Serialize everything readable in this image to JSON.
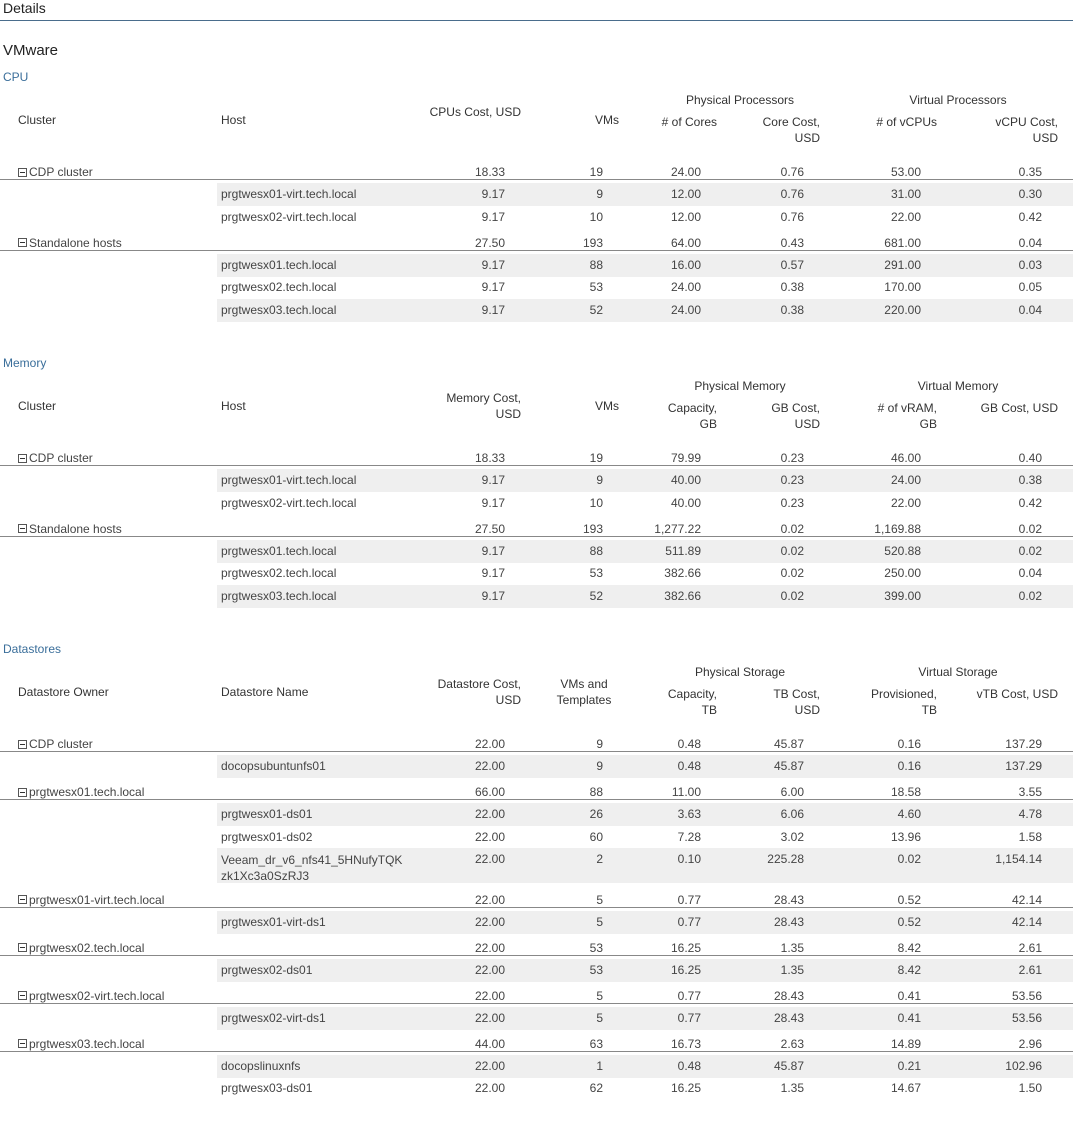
{
  "page": {
    "title": "Details",
    "subtitle": "VMware"
  },
  "cpu": {
    "title": "CPU",
    "headers": {
      "cluster": "Cluster",
      "host": "Host",
      "cost": "CPUs Cost, USD",
      "vms": "VMs",
      "group1": "Physical Processors",
      "g1c1": "# of Cores",
      "g1c2": "Core Cost, USD",
      "group2": "Virtual Processors",
      "g2c1": "# of vCPUs",
      "g2c2": "vCPU Cost, USD"
    },
    "groups": [
      {
        "name": "CDP cluster",
        "values": [
          "18.33",
          "19",
          "24.00",
          "0.76",
          "53.00",
          "0.35"
        ],
        "rows": [
          {
            "host": "prgtwesx01-virt.tech.local",
            "values": [
              "9.17",
              "9",
              "12.00",
              "0.76",
              "31.00",
              "0.30"
            ]
          },
          {
            "host": "prgtwesx02-virt.tech.local",
            "values": [
              "9.17",
              "10",
              "12.00",
              "0.76",
              "22.00",
              "0.42"
            ]
          }
        ]
      },
      {
        "name": "Standalone hosts",
        "values": [
          "27.50",
          "193",
          "64.00",
          "0.43",
          "681.00",
          "0.04"
        ],
        "rows": [
          {
            "host": "prgtwesx01.tech.local",
            "values": [
              "9.17",
              "88",
              "16.00",
              "0.57",
              "291.00",
              "0.03"
            ]
          },
          {
            "host": "prgtwesx02.tech.local",
            "values": [
              "9.17",
              "53",
              "24.00",
              "0.38",
              "170.00",
              "0.05"
            ]
          },
          {
            "host": "prgtwesx03.tech.local",
            "values": [
              "9.17",
              "52",
              "24.00",
              "0.38",
              "220.00",
              "0.04"
            ]
          }
        ]
      }
    ]
  },
  "memory": {
    "title": "Memory",
    "headers": {
      "cluster": "Cluster",
      "host": "Host",
      "cost": "Memory Cost, USD",
      "vms": "VMs",
      "group1": "Physical Memory",
      "g1c1": "Capacity, GB",
      "g1c2": "GB Cost, USD",
      "group2": "Virtual Memory",
      "g2c1": "# of vRAM, GB",
      "g2c2": "GB Cost, USD"
    },
    "groups": [
      {
        "name": "CDP cluster",
        "values": [
          "18.33",
          "19",
          "79.99",
          "0.23",
          "46.00",
          "0.40"
        ],
        "rows": [
          {
            "host": "prgtwesx01-virt.tech.local",
            "values": [
              "9.17",
              "9",
              "40.00",
              "0.23",
              "24.00",
              "0.38"
            ]
          },
          {
            "host": "prgtwesx02-virt.tech.local",
            "values": [
              "9.17",
              "10",
              "40.00",
              "0.23",
              "22.00",
              "0.42"
            ]
          }
        ]
      },
      {
        "name": "Standalone hosts",
        "values": [
          "27.50",
          "193",
          "1,277.22",
          "0.02",
          "1,169.88",
          "0.02"
        ],
        "rows": [
          {
            "host": "prgtwesx01.tech.local",
            "values": [
              "9.17",
              "88",
              "511.89",
              "0.02",
              "520.88",
              "0.02"
            ]
          },
          {
            "host": "prgtwesx02.tech.local",
            "values": [
              "9.17",
              "53",
              "382.66",
              "0.02",
              "250.00",
              "0.04"
            ]
          },
          {
            "host": "prgtwesx03.tech.local",
            "values": [
              "9.17",
              "52",
              "382.66",
              "0.02",
              "399.00",
              "0.02"
            ]
          }
        ]
      }
    ]
  },
  "datastores": {
    "title": "Datastores",
    "headers": {
      "cluster": "Datastore Owner",
      "host": "Datastore Name",
      "cost": "Datastore Cost, USD",
      "vms": "VMs and Templates",
      "group1": "Physical Storage",
      "g1c1": "Capacity, TB",
      "g1c2": "TB Cost, USD",
      "group2": "Virtual Storage",
      "g2c1": "Provisioned, TB",
      "g2c2": "vTB Cost, USD"
    },
    "groups": [
      {
        "name": "CDP cluster",
        "values": [
          "22.00",
          "9",
          "0.48",
          "45.87",
          "0.16",
          "137.29"
        ],
        "rows": [
          {
            "host": "docopsubuntunfs01",
            "values": [
              "22.00",
              "9",
              "0.48",
              "45.87",
              "0.16",
              "137.29"
            ]
          }
        ]
      },
      {
        "name": "prgtwesx01.tech.local",
        "values": [
          "66.00",
          "88",
          "11.00",
          "6.00",
          "18.58",
          "3.55"
        ],
        "rows": [
          {
            "host": "prgtwesx01-ds01",
            "values": [
              "22.00",
              "26",
              "3.63",
              "6.06",
              "4.60",
              "4.78"
            ]
          },
          {
            "host": "prgtwesx01-ds02",
            "values": [
              "22.00",
              "60",
              "7.28",
              "3.02",
              "13.96",
              "1.58"
            ]
          },
          {
            "host": "Veeam_dr_v6_nfs41_5HNufyTQKzk1Xc3a0SzRJ3",
            "host_l1": "Veeam_dr_v6_nfs41_5HNufyTQK",
            "host_l2": "zk1Xc3a0SzRJ3",
            "values": [
              "22.00",
              "2",
              "0.10",
              "225.28",
              "0.02",
              "1,154.14"
            ]
          }
        ]
      },
      {
        "name": "prgtwesx01-virt.tech.local",
        "values": [
          "22.00",
          "5",
          "0.77",
          "28.43",
          "0.52",
          "42.14"
        ],
        "rows": [
          {
            "host": "prgtwesx01-virt-ds1",
            "values": [
              "22.00",
              "5",
              "0.77",
              "28.43",
              "0.52",
              "42.14"
            ]
          }
        ]
      },
      {
        "name": "prgtwesx02.tech.local",
        "values": [
          "22.00",
          "53",
          "16.25",
          "1.35",
          "8.42",
          "2.61"
        ],
        "rows": [
          {
            "host": "prgtwesx02-ds01",
            "values": [
              "22.00",
              "53",
              "16.25",
              "1.35",
              "8.42",
              "2.61"
            ]
          }
        ]
      },
      {
        "name": "prgtwesx02-virt.tech.local",
        "values": [
          "22.00",
          "5",
          "0.77",
          "28.43",
          "0.41",
          "53.56"
        ],
        "rows": [
          {
            "host": "prgtwesx02-virt-ds1",
            "values": [
              "22.00",
              "5",
              "0.77",
              "28.43",
              "0.41",
              "53.56"
            ]
          }
        ]
      },
      {
        "name": "prgtwesx03.tech.local",
        "values": [
          "44.00",
          "63",
          "16.73",
          "2.63",
          "14.89",
          "2.96"
        ],
        "rows": [
          {
            "host": "docopslinuxnfs",
            "values": [
              "22.00",
              "1",
              "0.48",
              "45.87",
              "0.21",
              "102.96"
            ]
          },
          {
            "host": "prgtwesx03-ds01",
            "values": [
              "22.00",
              "62",
              "16.25",
              "1.35",
              "14.67",
              "1.50"
            ]
          }
        ]
      }
    ]
  }
}
